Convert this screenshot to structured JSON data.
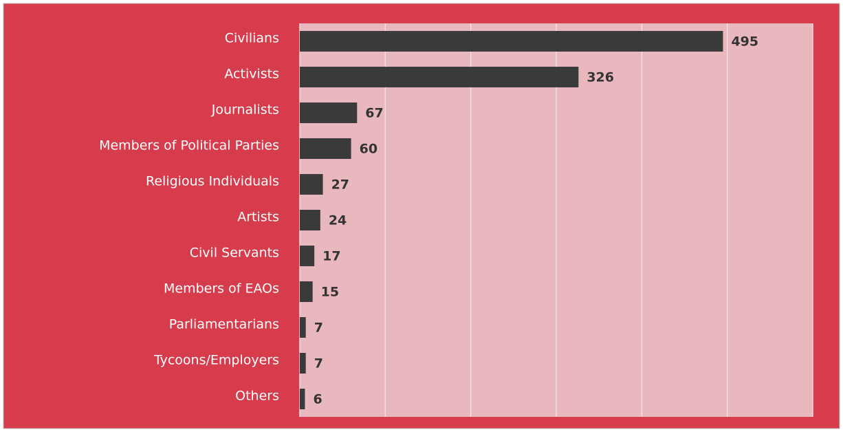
{
  "chart_data": {
    "type": "bar",
    "orientation": "horizontal",
    "categories": [
      "Civilians",
      "Activists",
      "Journalists",
      "Members of Political Parties",
      "Religious Individuals",
      "Artists",
      "Civil Servants",
      "Members of EAOs",
      "Parliamentarians",
      "Tycoons/Employers",
      "Others"
    ],
    "values": [
      495,
      326,
      67,
      60,
      27,
      24,
      17,
      15,
      7,
      7,
      6
    ],
    "color": "#3a3a3a",
    "xlim": [
      0,
      600
    ],
    "xticks": [
      0,
      100,
      200,
      300,
      400,
      500,
      600
    ],
    "grid": true
  }
}
